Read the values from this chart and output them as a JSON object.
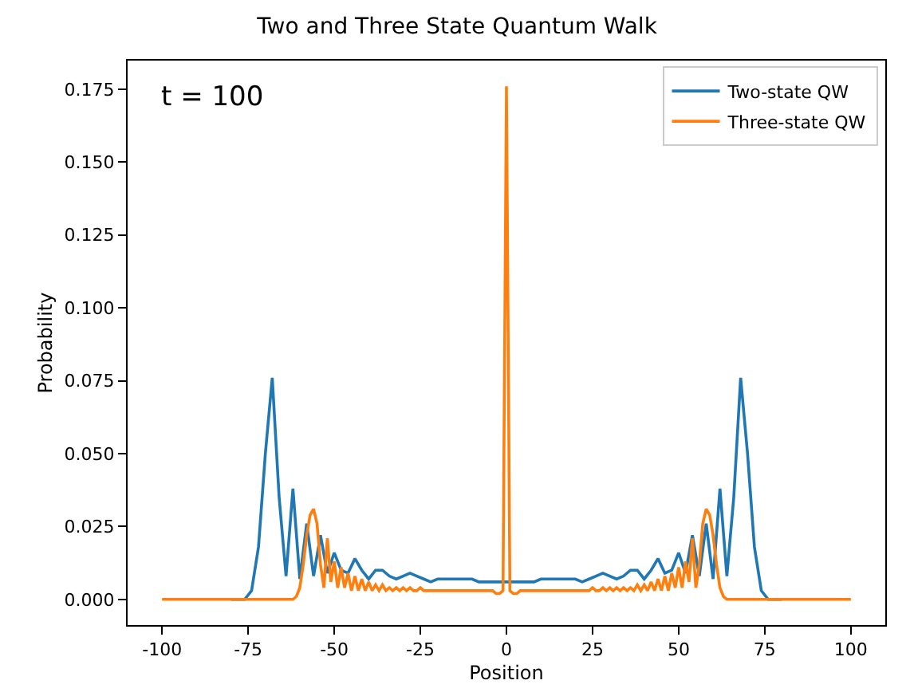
{
  "chart_data": {
    "type": "line",
    "title": "Two and Three State Quantum Walk",
    "xlabel": "Position",
    "ylabel": "Probability",
    "annotations": [
      "t = 100"
    ],
    "xlim": [
      -110,
      110
    ],
    "xticks": [
      -100,
      -75,
      -50,
      -25,
      0,
      25,
      50,
      75,
      100
    ],
    "ylim": [
      -0.0088,
      0.1848
    ],
    "yticks": [
      {
        "value": 0,
        "label": "0.000"
      },
      {
        "value": 0.025,
        "label": "0.025"
      },
      {
        "value": 0.05,
        "label": "0.050"
      },
      {
        "value": 0.075,
        "label": "0.075"
      },
      {
        "value": 0.1,
        "label": "0.100"
      },
      {
        "value": 0.125,
        "label": "0.125"
      },
      {
        "value": 0.15,
        "label": "0.150"
      },
      {
        "value": 0.175,
        "label": "0.175"
      }
    ],
    "legend": "top right",
    "marker": "none",
    "line_style": "solid",
    "series": [
      {
        "name": "Two-state QW",
        "color": "#1f77b4",
        "x": [
          -80,
          -78,
          -76,
          -74,
          -72,
          -70,
          -68,
          -66,
          -64,
          -62,
          -60,
          -58,
          -56,
          -54,
          -52,
          -50,
          -48,
          -46,
          -44,
          -42,
          -40,
          -38,
          -36,
          -34,
          -32,
          -30,
          -28,
          -26,
          -24,
          -22,
          -20,
          -18,
          -16,
          -14,
          -12,
          -10,
          -8,
          -6,
          -4,
          -2,
          0,
          2,
          4,
          6,
          8,
          10,
          12,
          14,
          16,
          18,
          20,
          22,
          24,
          26,
          28,
          30,
          32,
          34,
          36,
          38,
          40,
          42,
          44,
          46,
          48,
          50,
          52,
          54,
          56,
          58,
          60,
          62,
          64,
          66,
          68,
          70,
          72,
          74,
          76,
          78,
          80
        ],
        "values": [
          0,
          0,
          0,
          0.003,
          0.018,
          0.05,
          0.076,
          0.035,
          0.008,
          0.038,
          0.007,
          0.026,
          0.008,
          0.022,
          0.009,
          0.016,
          0.01,
          0.009,
          0.014,
          0.01,
          0.007,
          0.01,
          0.01,
          0.008,
          0.007,
          0.008,
          0.009,
          0.008,
          0.007,
          0.006,
          0.007,
          0.007,
          0.007,
          0.007,
          0.007,
          0.007,
          0.006,
          0.006,
          0.006,
          0.006,
          0.006,
          0.006,
          0.006,
          0.006,
          0.006,
          0.007,
          0.007,
          0.007,
          0.007,
          0.007,
          0.007,
          0.006,
          0.007,
          0.008,
          0.009,
          0.008,
          0.007,
          0.008,
          0.01,
          0.01,
          0.007,
          0.01,
          0.014,
          0.009,
          0.01,
          0.016,
          0.009,
          0.022,
          0.008,
          0.026,
          0.007,
          0.038,
          0.008,
          0.035,
          0.076,
          0.05,
          0.018,
          0.003,
          0,
          0,
          0
        ]
      },
      {
        "name": "Three-state QW",
        "color": "#ff7f0e",
        "x": [
          -100,
          -99,
          -98,
          -97,
          -96,
          -95,
          -94,
          -93,
          -92,
          -91,
          -90,
          -89,
          -88,
          -87,
          -86,
          -85,
          -84,
          -83,
          -82,
          -81,
          -80,
          -79,
          -78,
          -77,
          -76,
          -75,
          -74,
          -73,
          -72,
          -71,
          -70,
          -69,
          -68,
          -67,
          -66,
          -65,
          -64,
          -63,
          -62,
          -61,
          -60,
          -59,
          -58,
          -57,
          -56,
          -55,
          -54,
          -53,
          -52,
          -51,
          -50,
          -49,
          -48,
          -47,
          -46,
          -45,
          -44,
          -43,
          -42,
          -41,
          -40,
          -39,
          -38,
          -37,
          -36,
          -35,
          -34,
          -33,
          -32,
          -31,
          -30,
          -29,
          -28,
          -27,
          -26,
          -25,
          -24,
          -23,
          -22,
          -21,
          -20,
          -19,
          -18,
          -17,
          -16,
          -15,
          -14,
          -13,
          -12,
          -11,
          -10,
          -9,
          -8,
          -7,
          -6,
          -5,
          -4,
          -3,
          -2,
          -1,
          0,
          1,
          2,
          3,
          4,
          5,
          6,
          7,
          8,
          9,
          10,
          11,
          12,
          13,
          14,
          15,
          16,
          17,
          18,
          19,
          20,
          21,
          22,
          23,
          24,
          25,
          26,
          27,
          28,
          29,
          30,
          31,
          32,
          33,
          34,
          35,
          36,
          37,
          38,
          39,
          40,
          41,
          42,
          43,
          44,
          45,
          46,
          47,
          48,
          49,
          50,
          51,
          52,
          53,
          54,
          55,
          56,
          57,
          58,
          59,
          60,
          61,
          62,
          63,
          64,
          65,
          66,
          67,
          68,
          69,
          70,
          71,
          72,
          73,
          74,
          75,
          76,
          77,
          78,
          79,
          80,
          81,
          82,
          83,
          84,
          85,
          86,
          87,
          88,
          89,
          90,
          91,
          92,
          93,
          94,
          95,
          96,
          97,
          98,
          99,
          100
        ],
        "values": [
          0,
          0,
          0,
          0,
          0,
          0,
          0,
          0,
          0,
          0,
          0,
          0,
          0,
          0,
          0,
          0,
          0,
          0,
          0,
          0,
          0,
          0,
          0,
          0,
          0,
          0,
          0,
          0,
          0,
          0,
          0,
          0,
          0,
          0,
          0,
          0,
          0,
          0,
          0,
          0.001,
          0.004,
          0.012,
          0.022,
          0.029,
          0.031,
          0.026,
          0.012,
          0.004,
          0.021,
          0.006,
          0.013,
          0.004,
          0.011,
          0.004,
          0.009,
          0.003,
          0.008,
          0.003,
          0.007,
          0.003,
          0.006,
          0.003,
          0.005,
          0.003,
          0.005,
          0.003,
          0.004,
          0.003,
          0.004,
          0.003,
          0.004,
          0.003,
          0.004,
          0.003,
          0.003,
          0.004,
          0.003,
          0.003,
          0.003,
          0.003,
          0.003,
          0.003,
          0.003,
          0.003,
          0.003,
          0.003,
          0.003,
          0.003,
          0.003,
          0.003,
          0.003,
          0.003,
          0.003,
          0.003,
          0.003,
          0.003,
          0.003,
          0.002,
          0.002,
          0.003,
          0.176,
          0.003,
          0.002,
          0.002,
          0.003,
          0.003,
          0.003,
          0.003,
          0.003,
          0.003,
          0.003,
          0.003,
          0.003,
          0.003,
          0.003,
          0.003,
          0.003,
          0.003,
          0.003,
          0.003,
          0.003,
          0.003,
          0.003,
          0.003,
          0.003,
          0.004,
          0.003,
          0.003,
          0.004,
          0.003,
          0.004,
          0.003,
          0.004,
          0.003,
          0.004,
          0.003,
          0.004,
          0.003,
          0.005,
          0.003,
          0.005,
          0.003,
          0.006,
          0.003,
          0.007,
          0.003,
          0.008,
          0.003,
          0.009,
          0.004,
          0.011,
          0.004,
          0.013,
          0.006,
          0.021,
          0.004,
          0.012,
          0.026,
          0.031,
          0.029,
          0.022,
          0.012,
          0.004,
          0.001,
          0,
          0,
          0,
          0,
          0,
          0,
          0,
          0,
          0,
          0,
          0,
          0,
          0,
          0,
          0,
          0,
          0,
          0,
          0,
          0,
          0,
          0,
          0,
          0,
          0,
          0,
          0,
          0,
          0,
          0,
          0,
          0,
          0,
          0,
          0,
          0,
          0
        ]
      }
    ]
  }
}
